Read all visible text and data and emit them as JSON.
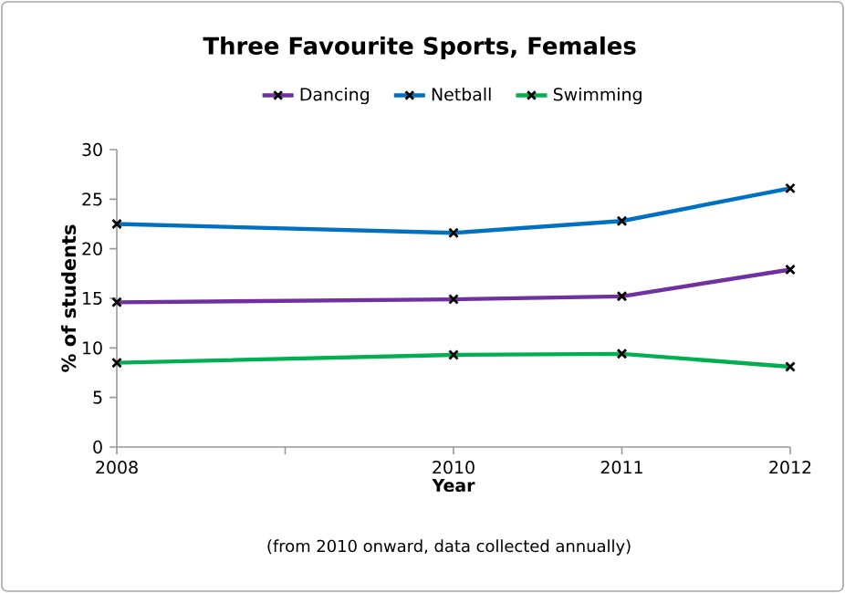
{
  "chart_data": {
    "type": "line",
    "title": "Three Favourite Sports, Females",
    "xlabel": "Year",
    "ylabel": "% of students",
    "annotations": [
      "(from 2010 onward, data collected annually)"
    ],
    "x": [
      2008,
      2010,
      2011,
      2012
    ],
    "series": [
      {
        "name": "Dancing",
        "color": "#7030a0",
        "values": [
          14.6,
          14.9,
          15.2,
          17.9
        ]
      },
      {
        "name": "Netball",
        "color": "#0070c0",
        "values": [
          22.5,
          21.6,
          22.8,
          26.1
        ]
      },
      {
        "name": "Swimming",
        "color": "#00b050",
        "values": [
          8.5,
          9.3,
          9.4,
          8.1
        ]
      }
    ],
    "xlim": [
      2008,
      2012
    ],
    "xticks": [
      2008,
      {
        "value": 2009,
        "label": null
      },
      2010,
      2011,
      2012
    ],
    "ylim": [
      0,
      30
    ],
    "yticks": [
      0,
      5,
      10,
      15,
      20,
      25,
      30
    ],
    "grid": false,
    "legend": "top",
    "marker": "cross",
    "line_style": "solid"
  }
}
